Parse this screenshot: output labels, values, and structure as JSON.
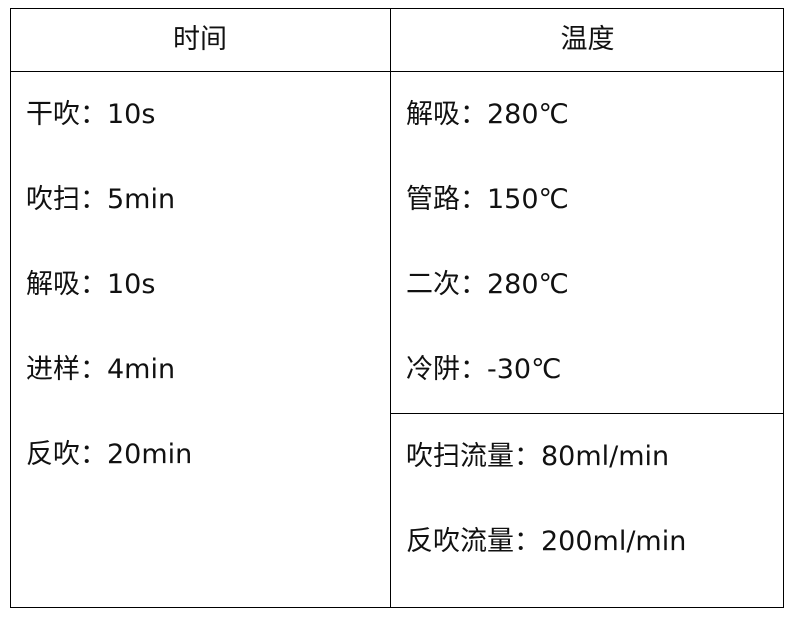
{
  "headers": {
    "time": "时间",
    "temperature": "温度"
  },
  "time_items": [
    "干吹：10s",
    "吹扫：5min",
    "解吸：10s",
    "进样：4min",
    "反吹：20min"
  ],
  "temperature_items": [
    "解吸：280℃",
    "管路：150℃",
    "二次：280℃",
    "冷阱：-30℃"
  ],
  "flow_items": [
    "吹扫流量：80ml/min",
    "反吹流量：200ml/min"
  ]
}
